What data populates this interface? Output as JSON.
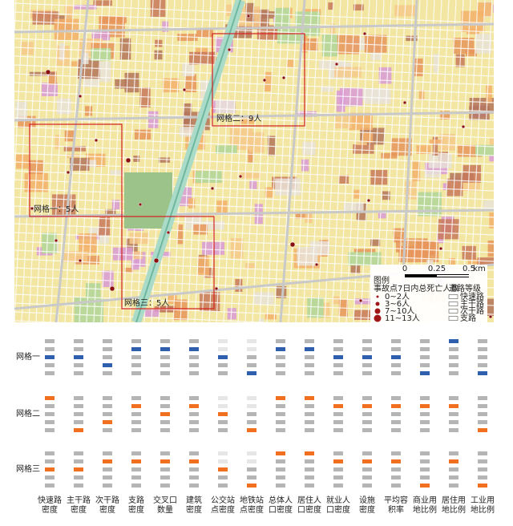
{
  "map": {
    "grids": [
      {
        "label": "网格一：5人"
      },
      {
        "label": "网格二：9人"
      },
      {
        "label": "网格三：5人"
      }
    ],
    "legend": {
      "title": "图例",
      "size_title": "事故点7日内总死亡人数",
      "size_classes": [
        "0~2人",
        "3~6人",
        "7~10人",
        "11~13人"
      ],
      "road_title": "道路等级",
      "road_classes": [
        "快速路",
        "主干路",
        "次干路",
        "支路"
      ],
      "scale": [
        "0",
        "0.25",
        "0.5",
        "km"
      ]
    }
  },
  "indicators": {
    "columns": [
      [
        "快速路",
        "密度"
      ],
      [
        "主干路",
        "密度"
      ],
      [
        "次干路",
        "密度"
      ],
      [
        "支路",
        "密度"
      ],
      [
        "交叉口",
        "数量"
      ],
      [
        "建筑",
        "密度"
      ],
      [
        "公交站",
        "点密度"
      ],
      [
        "地铁站",
        "点密度"
      ],
      [
        "总体人",
        "口密度"
      ],
      [
        "居住人",
        "口密度"
      ],
      [
        "就业人",
        "口密度"
      ],
      [
        "设施",
        "密度"
      ],
      [
        "平均容",
        "积率"
      ],
      [
        "商业用",
        "地比例"
      ],
      [
        "居住用",
        "地比例"
      ],
      [
        "工业用",
        "地比例"
      ]
    ],
    "rows": [
      {
        "name": "网格一",
        "color": "#2f5fad",
        "levels": [
          2,
          2,
          3,
          1,
          1,
          1,
          2,
          4,
          1,
          1,
          2,
          2,
          2,
          4,
          0,
          4
        ]
      },
      {
        "name": "网格二",
        "color": "#f07020",
        "levels": [
          0,
          4,
          3,
          1,
          2,
          1,
          2,
          4,
          0,
          0,
          1,
          1,
          1,
          1,
          1,
          4
        ]
      },
      {
        "name": "网格三",
        "color": "#f07020",
        "levels": [
          2,
          2,
          1,
          1,
          1,
          1,
          2,
          4,
          0,
          0,
          1,
          1,
          1,
          4,
          1,
          4
        ]
      }
    ]
  }
}
